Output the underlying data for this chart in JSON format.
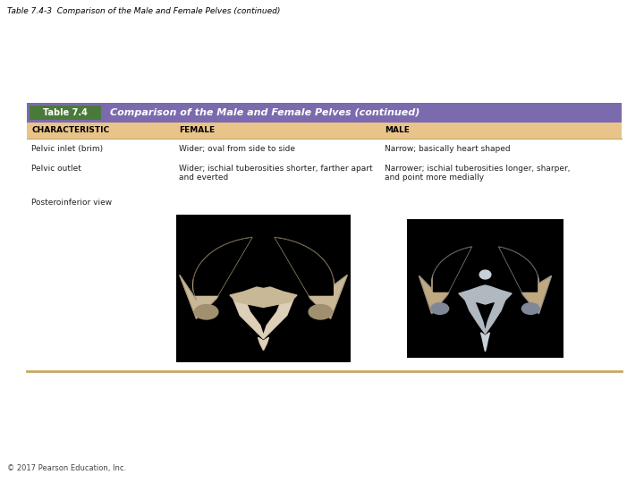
{
  "page_title": "Table 7.4-3  Comparison of the Male and Female Pelves (continued)",
  "table_header_label": "Table 7.4",
  "table_header_title": "Comparison of the Male and Female Pelves (continued)",
  "col_headers": [
    "CHARACTERISTIC",
    "FEMALE",
    "MALE"
  ],
  "rows": [
    {
      "characteristic": "Pelvic inlet (brim)",
      "female": "Wider; oval from side to side",
      "male": "Narrow; basically heart shaped"
    },
    {
      "characteristic": "Pelvic outlet",
      "female": "Wider; ischial tuberosities shorter, farther apart\nand everted",
      "male": "Narrower; ischial tuberosities longer, sharper,\nand point more medially"
    },
    {
      "characteristic": "Posteroinferior view",
      "female": "",
      "male": ""
    }
  ],
  "copyright": "© 2017 Pearson Education, Inc.",
  "header_bg_color": "#7b6bae",
  "header_label_bg": "#4a7a3a",
  "col_header_bg": "#e8c48a",
  "table_border_color": "#c8a860",
  "header_text_color": "#ffffff",
  "col_header_text_color": "#000000",
  "body_text_color": "#222222",
  "page_title_color": "#000000",
  "bg_color": "#ffffff"
}
